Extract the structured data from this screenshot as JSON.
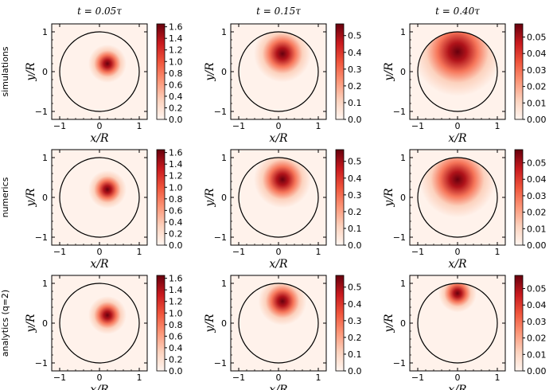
{
  "chart_data": {
    "type": "heatmap",
    "column_titles": [
      "t = 0.05τ",
      "t = 0.15τ",
      "t = 0.40τ"
    ],
    "row_labels": [
      "simulations",
      "numerics",
      "analytics (q=2)"
    ],
    "xlabel": "x/R",
    "ylabel": "y/R",
    "xticks": [
      "−1",
      "0",
      "1"
    ],
    "yticks": [
      "−1",
      "0",
      "1"
    ],
    "xlim": [
      -1.2,
      1.2
    ],
    "ylim": [
      -1.2,
      1.2
    ],
    "colormap": "Reds",
    "colorbars": [
      {
        "column": 0,
        "vmin": 0.0,
        "vmax": 1.65,
        "ticks": [
          "0.0",
          "0.2",
          "0.4",
          "0.6",
          "0.8",
          "1.0",
          "1.2",
          "1.4",
          "1.6"
        ]
      },
      {
        "column": 1,
        "vmin": 0.0,
        "vmax": 0.57,
        "ticks": [
          "0.0",
          "0.1",
          "0.2",
          "0.3",
          "0.4",
          "0.5"
        ]
      },
      {
        "column": 2,
        "vmin": 0.0,
        "vmax": 0.058,
        "ticks": [
          "0.00",
          "0.01",
          "0.02",
          "0.03",
          "0.04",
          "0.05"
        ]
      }
    ],
    "panels": [
      {
        "row": 0,
        "col": 0,
        "peak_x": 0.2,
        "peak_y": 0.2,
        "spread": 0.3,
        "note": "concentrated blob"
      },
      {
        "row": 0,
        "col": 1,
        "peak_x": 0.1,
        "peak_y": 0.45,
        "spread": 0.45,
        "note": "broader, shifted up"
      },
      {
        "row": 0,
        "col": 2,
        "peak_x": 0.0,
        "peak_y": 0.5,
        "spread": 0.7,
        "note": "diffuse, noisy"
      },
      {
        "row": 1,
        "col": 0,
        "peak_x": 0.2,
        "peak_y": 0.2,
        "spread": 0.3,
        "note": "concentrated blob"
      },
      {
        "row": 1,
        "col": 1,
        "peak_x": 0.1,
        "peak_y": 0.45,
        "spread": 0.45,
        "note": "broader, shifted up"
      },
      {
        "row": 1,
        "col": 2,
        "peak_x": 0.0,
        "peak_y": 0.45,
        "spread": 0.6,
        "note": "smooth broad"
      },
      {
        "row": 2,
        "col": 0,
        "peak_x": 0.2,
        "peak_y": 0.2,
        "spread": 0.3,
        "note": "concentrated blob"
      },
      {
        "row": 2,
        "col": 1,
        "peak_x": 0.1,
        "peak_y": 0.55,
        "spread": 0.38,
        "note": "crescent near top"
      },
      {
        "row": 2,
        "col": 2,
        "peak_x": 0.0,
        "peak_y": 0.75,
        "spread": 0.3,
        "note": "cap above y≈0.15"
      }
    ],
    "grid": false,
    "boundary": "unit circle"
  }
}
